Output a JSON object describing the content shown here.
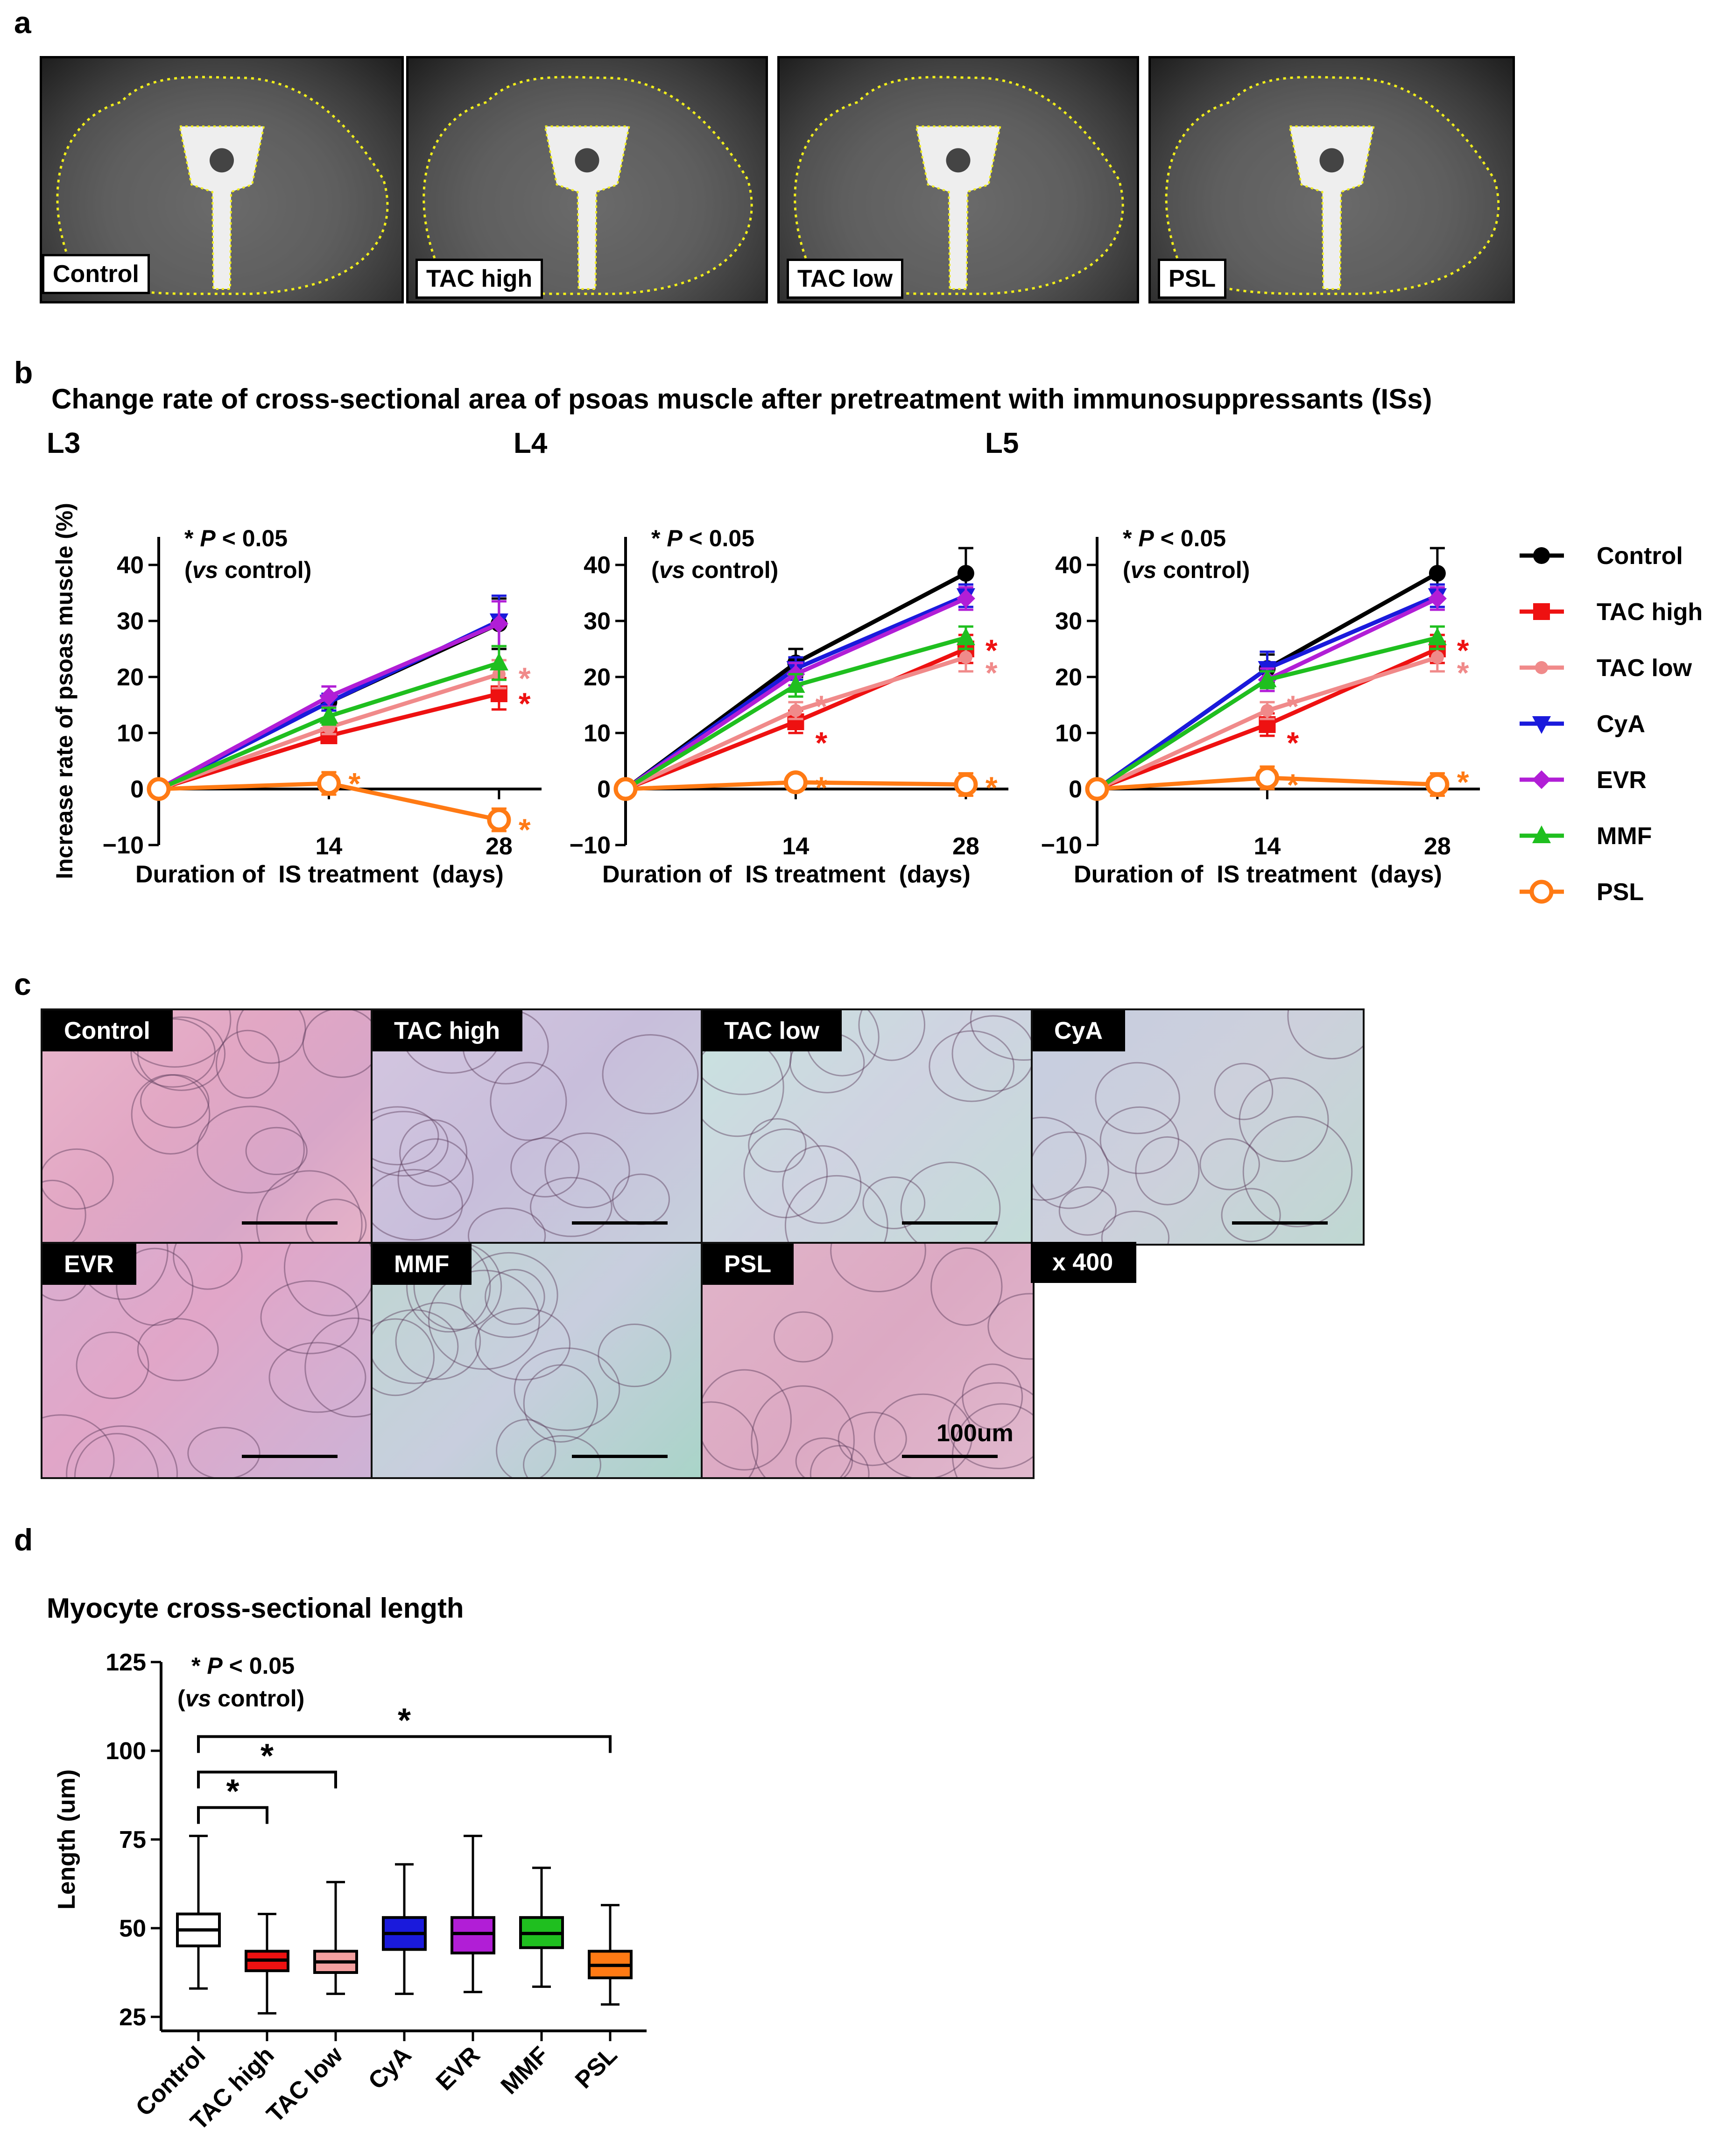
{
  "panel_a": {
    "letter": "a",
    "images": [
      "Control",
      "TAC high",
      "TAC low",
      "PSL"
    ]
  },
  "panel_b": {
    "letter": "b",
    "title": "Change rate of cross-sectional area of psoas muscle after pretreatment with immunosuppressants (ISs)",
    "significance_note": {
      "p_prefix": "* ",
      "p_italic": "P",
      "p_suffix": " < 0.05",
      "vs_open": "(",
      "vs_italic": "vs",
      "vs_suffix": " control)"
    },
    "legend_title": "",
    "colors": {
      "Control": "#000000",
      "TAC high": "#ee1111",
      "TAC low": "#f08a8a",
      "CyA": "#1a1adc",
      "EVR": "#b11ed6",
      "MMF": "#1fbf1f",
      "PSL": "#ff7a14"
    }
  },
  "chart_data": [
    {
      "type": "line",
      "title": "L3",
      "xlabel": "Duration of  IS treatment  (days)",
      "ylabel": "Increase rate of psoas muscle (%)",
      "x": [
        0,
        14,
        28
      ],
      "x_tick_labels": [
        "",
        "14",
        "28"
      ],
      "ylim": [
        -10,
        45
      ],
      "yticks": [
        -10,
        0,
        10,
        20,
        30,
        40
      ],
      "series": [
        {
          "name": "Control",
          "values": [
            0,
            15.5,
            29.5
          ],
          "err": [
            0,
            1.5,
            4.5
          ],
          "marker": "circle"
        },
        {
          "name": "TAC high",
          "values": [
            0,
            9.5,
            17
          ],
          "err": [
            0,
            1.2,
            2.8
          ],
          "marker": "square"
        },
        {
          "name": "TAC low",
          "values": [
            0,
            11,
            20.5
          ],
          "err": [
            0,
            1.2,
            2.5
          ],
          "marker": "circle-small"
        },
        {
          "name": "CyA",
          "values": [
            0,
            15.5,
            30
          ],
          "err": [
            0,
            1.5,
            4.5
          ],
          "marker": "triangle-down"
        },
        {
          "name": "EVR",
          "values": [
            0,
            16.5,
            29.5
          ],
          "err": [
            0,
            1.8,
            4
          ],
          "marker": "diamond"
        },
        {
          "name": "MMF",
          "values": [
            0,
            13,
            22.5
          ],
          "err": [
            0,
            1.5,
            3
          ],
          "marker": "triangle-up"
        },
        {
          "name": "PSL",
          "values": [
            0,
            1,
            -5.5
          ],
          "err": [
            0,
            2,
            2
          ],
          "marker": "circle-open"
        }
      ],
      "asterisks": [
        {
          "x": 28,
          "y": 21,
          "series": "TAC low"
        },
        {
          "x": 28,
          "y": 16.5,
          "series": "TAC high"
        },
        {
          "x": 14,
          "y": 2.2,
          "series": "PSL"
        },
        {
          "x": 28,
          "y": -6,
          "series": "PSL"
        }
      ]
    },
    {
      "type": "line",
      "title": "L4",
      "xlabel": "Duration of  IS treatment  (days)",
      "ylabel": "Increase rate of psoas muscle (%)",
      "x": [
        0,
        14,
        28
      ],
      "x_tick_labels": [
        "",
        "14",
        "28"
      ],
      "ylim": [
        -10,
        45
      ],
      "yticks": [
        -10,
        0,
        10,
        20,
        30,
        40
      ],
      "series": [
        {
          "name": "Control",
          "values": [
            0,
            22.5,
            38.5
          ],
          "err": [
            0,
            2.5,
            4.5
          ],
          "marker": "circle"
        },
        {
          "name": "TAC high",
          "values": [
            0,
            12,
            25
          ],
          "err": [
            0,
            2,
            2.5
          ],
          "marker": "square"
        },
        {
          "name": "TAC low",
          "values": [
            0,
            14,
            23.5
          ],
          "err": [
            0,
            1.5,
            2.5
          ],
          "marker": "circle-small"
        },
        {
          "name": "CyA",
          "values": [
            0,
            21.5,
            34.5
          ],
          "err": [
            0,
            2,
            2
          ],
          "marker": "triangle-down"
        },
        {
          "name": "EVR",
          "values": [
            0,
            20.5,
            34
          ],
          "err": [
            0,
            2,
            2
          ],
          "marker": "diamond"
        },
        {
          "name": "MMF",
          "values": [
            0,
            18.5,
            27
          ],
          "err": [
            0,
            2,
            2
          ],
          "marker": "triangle-up"
        },
        {
          "name": "PSL",
          "values": [
            0,
            1.2,
            0.8
          ],
          "err": [
            0,
            1,
            2
          ],
          "marker": "circle-open"
        }
      ],
      "asterisks": [
        {
          "x": 28,
          "y": 26,
          "series": "TAC high"
        },
        {
          "x": 28,
          "y": 22,
          "series": "TAC low"
        },
        {
          "x": 14,
          "y": 16,
          "series": "TAC low"
        },
        {
          "x": 14,
          "y": 9.5,
          "series": "TAC high"
        },
        {
          "x": 14,
          "y": 1.5,
          "series": "PSL"
        },
        {
          "x": 28,
          "y": 1.5,
          "series": "PSL"
        }
      ]
    },
    {
      "type": "line",
      "title": "L5",
      "xlabel": "Duration of  IS treatment  (days)",
      "ylabel": "Increase rate of psoas muscle (%)",
      "x": [
        0,
        14,
        28
      ],
      "x_tick_labels": [
        "",
        "14",
        "28"
      ],
      "ylim": [
        -10,
        45
      ],
      "yticks": [
        -10,
        0,
        10,
        20,
        30,
        40
      ],
      "series": [
        {
          "name": "Control",
          "values": [
            0,
            21.5,
            38.5
          ],
          "err": [
            0,
            2.5,
            4.5
          ],
          "marker": "circle"
        },
        {
          "name": "TAC high",
          "values": [
            0,
            11.5,
            25
          ],
          "err": [
            0,
            2,
            2.5
          ],
          "marker": "square"
        },
        {
          "name": "TAC low",
          "values": [
            0,
            14,
            23.5
          ],
          "err": [
            0,
            1.5,
            2.5
          ],
          "marker": "circle-small"
        },
        {
          "name": "CyA",
          "values": [
            0,
            21.5,
            34.5
          ],
          "err": [
            0,
            3,
            2
          ],
          "marker": "triangle-down"
        },
        {
          "name": "EVR",
          "values": [
            0,
            19.5,
            34
          ],
          "err": [
            0,
            2,
            2
          ],
          "marker": "diamond"
        },
        {
          "name": "MMF",
          "values": [
            0,
            19.5,
            27
          ],
          "err": [
            0,
            1.5,
            2
          ],
          "marker": "triangle-up"
        },
        {
          "name": "PSL",
          "values": [
            0,
            2,
            0.8
          ],
          "err": [
            0,
            2,
            2
          ],
          "marker": "circle-open"
        }
      ],
      "asterisks": [
        {
          "x": 28,
          "y": 26,
          "series": "TAC high"
        },
        {
          "x": 28,
          "y": 22,
          "series": "TAC low"
        },
        {
          "x": 14,
          "y": 16,
          "series": "TAC low"
        },
        {
          "x": 14,
          "y": 9.5,
          "series": "TAC high"
        },
        {
          "x": 14,
          "y": 2,
          "series": "PSL"
        },
        {
          "x": 28,
          "y": 2.5,
          "series": "PSL"
        }
      ]
    },
    {
      "type": "box",
      "title": "Myocyte cross-sectional length",
      "xlabel": "",
      "ylabel": "Length (um)",
      "ylim": [
        25,
        125
      ],
      "yticks": [
        25,
        50,
        75,
        100,
        125
      ],
      "categories": [
        "Control",
        "TAC high",
        "TAC low",
        "CyA",
        "EVR",
        "MMF",
        "PSL"
      ],
      "boxes": [
        {
          "name": "Control",
          "min": 33,
          "q1": 45,
          "median": 49.5,
          "q3": 54,
          "max": 76,
          "fill": "#ffffff"
        },
        {
          "name": "TAC high",
          "min": 26,
          "q1": 38,
          "median": 41,
          "q3": 43.5,
          "max": 54,
          "fill": "#ee1111"
        },
        {
          "name": "TAC low",
          "min": 31.5,
          "q1": 37.5,
          "median": 40.5,
          "q3": 43.5,
          "max": 63,
          "fill": "#f4a0a0"
        },
        {
          "name": "CyA",
          "min": 31.5,
          "q1": 44,
          "median": 48.5,
          "q3": 53,
          "max": 68,
          "fill": "#1a1adc"
        },
        {
          "name": "EVR",
          "min": 32,
          "q1": 43,
          "median": 48.5,
          "q3": 53,
          "max": 76,
          "fill": "#b11ed6"
        },
        {
          "name": "MMF",
          "min": 33.5,
          "q1": 44.5,
          "median": 48.5,
          "q3": 53,
          "max": 67,
          "fill": "#1fbf1f"
        },
        {
          "name": "PSL",
          "min": 28.5,
          "q1": 36,
          "median": 39.5,
          "q3": 43.5,
          "max": 56.5,
          "fill": "#ff7a14"
        }
      ],
      "brackets": [
        {
          "from": "Control",
          "to": "TAC high",
          "y": 84,
          "label": "*"
        },
        {
          "from": "Control",
          "to": "TAC low",
          "y": 94,
          "label": "*"
        },
        {
          "from": "Control",
          "to": "PSL",
          "y": 104,
          "label": "*"
        }
      ]
    }
  ],
  "panel_c": {
    "letter": "c",
    "images": [
      "Control",
      "TAC high",
      "TAC low",
      "CyA",
      "EVR",
      "MMF",
      "PSL"
    ],
    "magnification": "x 400",
    "scale_bar": "100um"
  },
  "panel_d": {
    "letter": "d"
  }
}
